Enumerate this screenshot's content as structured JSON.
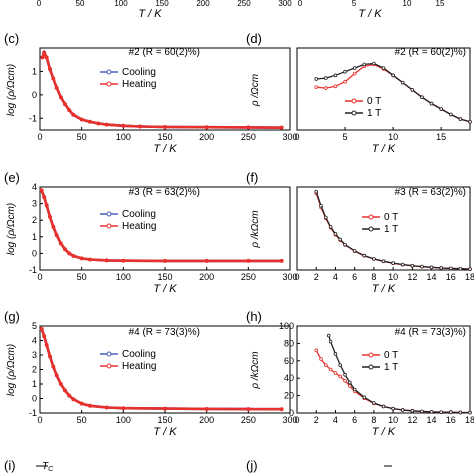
{
  "chart_data": [
    {
      "id": "b_partial",
      "type": "line",
      "x_tick_labels": [
        "0",
        "50",
        "100",
        "150",
        "200",
        "250",
        "300"
      ],
      "xlabel": "T / K"
    },
    {
      "id": "c_partial",
      "type": "line",
      "x_tick_labels": [
        "0",
        "5",
        "10",
        "15"
      ],
      "xlabel": "T / K"
    },
    {
      "id": "c",
      "panel_label": "(c)",
      "type": "line",
      "title": "#2 (R = 60(2)%)",
      "xlabel": "T / K",
      "ylabel": "log (ρ/Ωcm)",
      "xlim": [
        0,
        300
      ],
      "ylim": [
        -1.5,
        2
      ],
      "xticks": [
        0,
        50,
        100,
        150,
        200,
        250,
        300
      ],
      "yticks": [
        -1,
        0,
        1
      ],
      "legend": "middle-right",
      "series": [
        {
          "name": "Cooling",
          "color": "#4a5fc1",
          "x": [
            3,
            5,
            8,
            12,
            16,
            20,
            25,
            30,
            35,
            40,
            50,
            60,
            70,
            80,
            100,
            120,
            150,
            200,
            250,
            290
          ],
          "y": [
            1.6,
            1.8,
            1.6,
            1.1,
            0.7,
            0.3,
            -0.1,
            -0.4,
            -0.65,
            -0.85,
            -1.05,
            -1.15,
            -1.22,
            -1.27,
            -1.32,
            -1.35,
            -1.37,
            -1.38,
            -1.39,
            -1.4
          ]
        },
        {
          "name": "Heating",
          "color": "#e8302c",
          "x": [
            3,
            5,
            8,
            12,
            16,
            20,
            25,
            30,
            35,
            40,
            50,
            60,
            70,
            80,
            100,
            120,
            150,
            200,
            250,
            290
          ],
          "y": [
            1.6,
            1.8,
            1.6,
            1.1,
            0.7,
            0.3,
            -0.1,
            -0.4,
            -0.65,
            -0.85,
            -1.05,
            -1.15,
            -1.22,
            -1.27,
            -1.32,
            -1.35,
            -1.37,
            -1.38,
            -1.39,
            -1.4
          ]
        }
      ]
    },
    {
      "id": "d",
      "panel_label": "(d)",
      "type": "line",
      "title": "#2 (R = 60(2)%)",
      "xlabel": "T / K",
      "ylabel": "ρ /Ωcm",
      "xlim": [
        0,
        18
      ],
      "ylim": [
        0,
        90
      ],
      "xticks": [
        0,
        5,
        10,
        15
      ],
      "legend": "lower-left",
      "series": [
        {
          "name": "0 T",
          "color": "#e8302c",
          "x": [
            2,
            3,
            4,
            5,
            6,
            7,
            8,
            9,
            10,
            11,
            12,
            13,
            14,
            15,
            16,
            17,
            18
          ],
          "y": [
            47,
            46,
            48,
            53,
            62,
            70,
            72,
            67,
            60,
            52,
            44,
            36,
            29,
            23,
            17,
            12,
            9
          ]
        },
        {
          "name": "1 T",
          "color": "#222222",
          "x": [
            2,
            3,
            4,
            5,
            6,
            7,
            8,
            9,
            10,
            11,
            12,
            13,
            14,
            15,
            16,
            17,
            18
          ],
          "y": [
            56,
            57,
            60,
            64,
            68,
            72,
            73,
            68,
            60,
            52,
            44,
            36,
            29,
            23,
            17,
            12,
            9
          ]
        }
      ]
    },
    {
      "id": "e",
      "panel_label": "(e)",
      "type": "line",
      "title": "#3 (R = 63(2)%)",
      "xlabel": "T / K",
      "ylabel": "log (ρ/Ωcm)",
      "xlim": [
        0,
        300
      ],
      "ylim": [
        -1,
        4
      ],
      "xticks": [
        0,
        50,
        100,
        150,
        200,
        250,
        300
      ],
      "yticks": [
        -1,
        0,
        1,
        2,
        3,
        4
      ],
      "legend": "middle-right",
      "series": [
        {
          "name": "Cooling",
          "color": "#4a5fc1",
          "x": [
            2,
            5,
            8,
            12,
            16,
            20,
            25,
            30,
            35,
            40,
            50,
            60,
            80,
            100,
            150,
            200,
            250,
            290
          ],
          "y": [
            3.8,
            3.4,
            2.9,
            2.2,
            1.6,
            1.1,
            0.6,
            0.25,
            0.0,
            -0.15,
            -0.3,
            -0.37,
            -0.42,
            -0.44,
            -0.45,
            -0.45,
            -0.45,
            -0.45
          ]
        },
        {
          "name": "Heating",
          "color": "#e8302c",
          "x": [
            2,
            5,
            8,
            12,
            16,
            20,
            25,
            30,
            35,
            40,
            50,
            60,
            80,
            100,
            150,
            200,
            250,
            290
          ],
          "y": [
            3.8,
            3.4,
            2.9,
            2.2,
            1.6,
            1.1,
            0.6,
            0.25,
            0.0,
            -0.15,
            -0.3,
            -0.37,
            -0.42,
            -0.44,
            -0.45,
            -0.45,
            -0.45,
            -0.45
          ]
        }
      ]
    },
    {
      "id": "f",
      "panel_label": "(f)",
      "type": "line",
      "title": "#3 (R = 63(2)%)",
      "xlabel": "T / K",
      "ylabel": "ρ /kΩcm",
      "xlim": [
        0,
        18
      ],
      "ylim": [
        0,
        5.3
      ],
      "xticks": [
        0,
        2,
        4,
        6,
        8,
        10,
        12,
        14,
        16,
        18
      ],
      "legend": "middle-right",
      "series": [
        {
          "name": "0 T",
          "color": "#e8302c",
          "x": [
            2,
            2.5,
            3,
            3.5,
            4,
            4.5,
            5,
            6,
            7,
            8,
            9,
            10,
            11,
            12,
            13,
            14,
            15,
            16,
            17,
            18
          ],
          "y": [
            4.9,
            4.0,
            3.3,
            2.7,
            2.25,
            1.9,
            1.6,
            1.2,
            0.9,
            0.7,
            0.55,
            0.43,
            0.34,
            0.27,
            0.21,
            0.17,
            0.13,
            0.1,
            0.08,
            0.06
          ]
        },
        {
          "name": "1 T",
          "color": "#222222",
          "x": [
            2,
            2.5,
            3,
            3.5,
            4,
            4.5,
            5,
            6,
            7,
            8,
            9,
            10,
            11,
            12,
            13,
            14,
            15,
            16,
            17,
            18
          ],
          "y": [
            5.0,
            4.1,
            3.35,
            2.75,
            2.3,
            1.95,
            1.62,
            1.22,
            0.92,
            0.71,
            0.56,
            0.44,
            0.35,
            0.28,
            0.22,
            0.17,
            0.13,
            0.1,
            0.08,
            0.06
          ]
        }
      ]
    },
    {
      "id": "g",
      "panel_label": "(g)",
      "type": "line",
      "title": "#4 (R = 73(3)%)",
      "xlabel": "T / K",
      "ylabel": "log (ρ/Ωcm)",
      "xlim": [
        0,
        300
      ],
      "ylim": [
        -1,
        5
      ],
      "xticks": [
        0,
        50,
        100,
        150,
        200,
        250,
        300
      ],
      "yticks": [
        -1,
        0,
        1,
        2,
        3,
        4,
        5
      ],
      "legend": "middle-right",
      "series": [
        {
          "name": "Cooling",
          "color": "#4a5fc1",
          "x": [
            2,
            5,
            8,
            12,
            16,
            20,
            25,
            30,
            35,
            40,
            50,
            60,
            80,
            100,
            150,
            200,
            250,
            290
          ],
          "y": [
            4.8,
            4.3,
            3.7,
            2.9,
            2.2,
            1.6,
            1.0,
            0.55,
            0.2,
            -0.05,
            -0.35,
            -0.5,
            -0.62,
            -0.67,
            -0.7,
            -0.72,
            -0.73,
            -0.74
          ]
        },
        {
          "name": "Heating",
          "color": "#e8302c",
          "x": [
            2,
            5,
            8,
            12,
            16,
            20,
            25,
            30,
            35,
            40,
            50,
            60,
            80,
            100,
            150,
            200,
            250,
            290
          ],
          "y": [
            4.8,
            4.3,
            3.7,
            2.9,
            2.2,
            1.6,
            1.0,
            0.55,
            0.2,
            -0.05,
            -0.35,
            -0.5,
            -0.62,
            -0.67,
            -0.7,
            -0.72,
            -0.73,
            -0.74
          ]
        }
      ]
    },
    {
      "id": "h",
      "panel_label": "(h)",
      "type": "line",
      "title": "#4 (R = 73(3)%)",
      "xlabel": "T / K",
      "ylabel": "ρ /kΩcm",
      "xlim": [
        0,
        18
      ],
      "ylim": [
        0,
        100
      ],
      "xticks": [
        0,
        2,
        4,
        6,
        8,
        10,
        12,
        14,
        16,
        18
      ],
      "yticks": [
        0,
        20,
        40,
        60,
        80,
        100
      ],
      "legend": "middle-right",
      "series": [
        {
          "name": "0 T",
          "color": "#e8302c",
          "x": [
            2,
            2.5,
            3,
            3.5,
            4,
            4.5,
            5,
            5.5,
            6,
            7,
            8,
            9,
            10,
            11,
            12,
            13,
            14,
            15,
            16,
            17,
            18
          ],
          "y": [
            72,
            62,
            55,
            50,
            46,
            42,
            37,
            31,
            25,
            17,
            11,
            7.5,
            5,
            3.5,
            2.5,
            1.8,
            1.3,
            1,
            0.8,
            0.6,
            0.5
          ]
        },
        {
          "name": "1 T",
          "color": "#222222",
          "x": [
            3.3,
            3.5,
            4,
            4.5,
            5,
            5.5,
            6,
            7,
            8,
            9,
            10,
            11,
            12,
            13,
            14,
            15,
            16,
            17,
            18
          ],
          "y": [
            89,
            82,
            68,
            55,
            44,
            35,
            27,
            18,
            11.5,
            7.5,
            5,
            3.5,
            2.5,
            1.8,
            1.3,
            1,
            0.8,
            0.6,
            0.5
          ]
        }
      ]
    }
  ],
  "row_bottom": {
    "i_label": "(i)",
    "j_label": "(j)",
    "tc_label": "T",
    "tc_sub": "C"
  }
}
